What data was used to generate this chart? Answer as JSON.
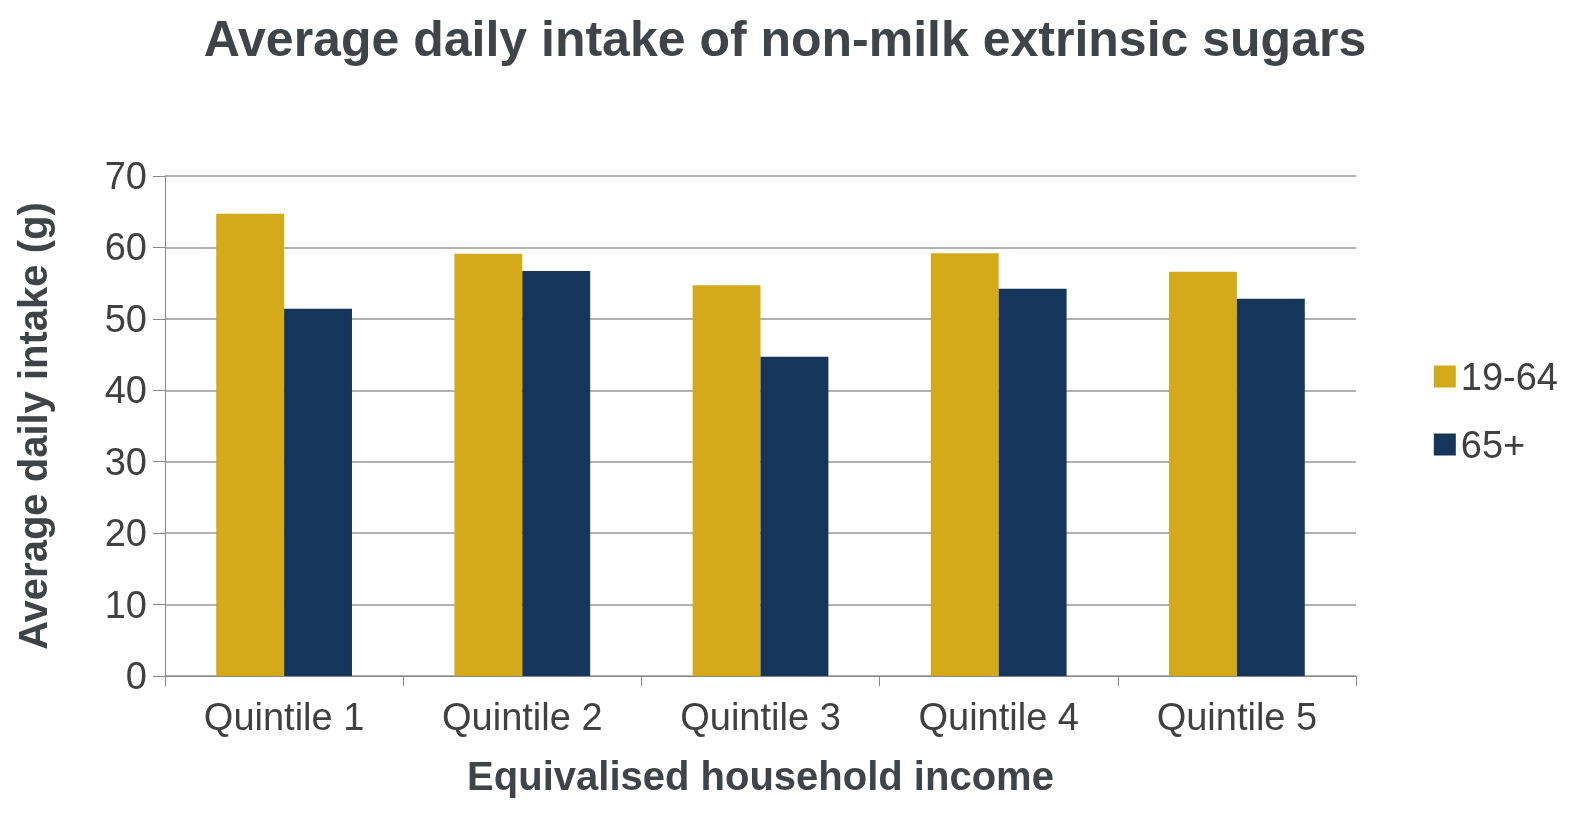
{
  "chart_data": {
    "type": "bar",
    "title": "Average daily intake of non-milk extrinsic sugars",
    "xlabel": "Equivalised household income",
    "ylabel": "Average daily intake (g)",
    "categories": [
      "Quintile 1",
      "Quintile 2",
      "Quintile 3",
      "Quintile 4",
      "Quintile 5"
    ],
    "series": [
      {
        "name": "19-64",
        "color": "#d4aa1a",
        "values": [
          64.7,
          59.1,
          54.7,
          59.2,
          56.6
        ]
      },
      {
        "name": "65+",
        "color": "#15355a",
        "values": [
          51.4,
          56.7,
          44.7,
          54.2,
          52.8
        ]
      }
    ],
    "ylim": [
      0,
      70
    ],
    "yticks": [
      0,
      10,
      20,
      30,
      40,
      50,
      60,
      70
    ],
    "grid": "y",
    "legend": "right"
  }
}
